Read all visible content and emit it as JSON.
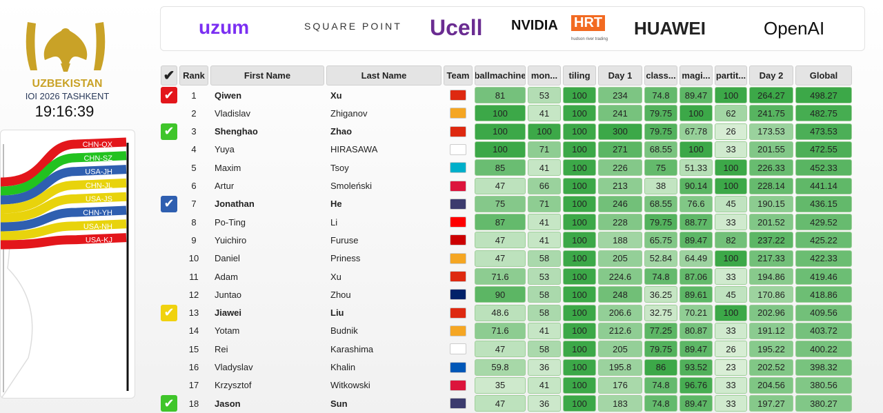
{
  "header": {
    "country": "UZBEKISTAN",
    "event": "IOI 2026 TASHKENT",
    "clock": "19:16:39"
  },
  "sponsors": [
    {
      "name": "uzum",
      "color": "#7b2ff2"
    },
    {
      "name": "SQUARE POINT",
      "color": "#333333"
    },
    {
      "name": "Ucell",
      "color": "#6a2c91"
    },
    {
      "name": "NVIDIA",
      "color": "#111111"
    },
    {
      "name": "HRT",
      "color": "#f26a21"
    },
    {
      "name": "hudson river trading",
      "color": "#555555"
    },
    {
      "name": "HUAWEI",
      "color": "#222222"
    },
    {
      "name": "OpenAI",
      "color": "#111111"
    }
  ],
  "leaders": [
    {
      "label": "CHN-QX",
      "color": "#e3161b"
    },
    {
      "label": "CHN-SZ",
      "color": "#22c21f"
    },
    {
      "label": "USA-JH",
      "color": "#2f5fb0"
    },
    {
      "label": "CHN-JL",
      "color": "#e8d30c"
    },
    {
      "label": "USA-JS",
      "color": "#e8d30c"
    },
    {
      "label": "CHN-YH",
      "color": "#2f5fb0"
    },
    {
      "label": "USA-NH",
      "color": "#e8d30c"
    },
    {
      "label": "USA-KJ",
      "color": "#e3161b"
    }
  ],
  "table": {
    "columns": [
      "✔",
      "Rank",
      "First Name",
      "Last Name",
      "Team",
      "ballmachine",
      "mon...",
      "tiling",
      "Day 1",
      "class...",
      "magi...",
      "partit...",
      "Day 2",
      "Global"
    ],
    "rows": [
      {
        "check": "#e3161b",
        "flag": "#de2910",
        "cells": [
          1,
          "Qiwen",
          "Xu",
          81,
          53,
          100,
          234,
          74.8,
          89.47,
          100,
          264.27,
          498.27
        ]
      },
      {
        "check": null,
        "flag": "#f5a623",
        "cells": [
          2,
          "Vladislav",
          "Zhiganov",
          100,
          41,
          100,
          241,
          79.75,
          100,
          62,
          241.75,
          482.75
        ]
      },
      {
        "check": "#3fc52a",
        "flag": "#de2910",
        "cells": [
          3,
          "Shenghao",
          "Zhao",
          100,
          100,
          100,
          300,
          79.75,
          67.78,
          26,
          173.53,
          473.53
        ]
      },
      {
        "check": null,
        "flag": "#ffffff",
        "cells": [
          4,
          "Yuya",
          "HIRASAWA",
          100,
          71,
          100,
          271,
          68.55,
          100,
          33,
          201.55,
          472.55
        ]
      },
      {
        "check": null,
        "flag": "#00afca",
        "cells": [
          5,
          "Maxim",
          "Tsoy",
          85,
          41,
          100,
          226,
          75,
          51.33,
          100,
          226.33,
          452.33
        ]
      },
      {
        "check": null,
        "flag": "#dc143c",
        "cells": [
          6,
          "Artur",
          "Smoleński",
          47,
          66,
          100,
          213,
          38,
          90.14,
          100,
          228.14,
          441.14
        ]
      },
      {
        "check": "#2f5fb0",
        "flag": "#3c3b6e",
        "cells": [
          7,
          "Jonathan",
          "He",
          75,
          71,
          100,
          246,
          68.55,
          76.6,
          45,
          190.15,
          436.15
        ]
      },
      {
        "check": null,
        "flag": "#fe0000",
        "cells": [
          8,
          "Po-Ting",
          "Li",
          87,
          41,
          100,
          228,
          79.75,
          88.77,
          33,
          201.52,
          429.52
        ]
      },
      {
        "check": null,
        "flag": "#cc0001",
        "cells": [
          9,
          "Yuichiro",
          "Furuse",
          47,
          41,
          100,
          188,
          65.75,
          89.47,
          82,
          237.22,
          425.22
        ]
      },
      {
        "check": null,
        "flag": "#f5a623",
        "cells": [
          10,
          "Daniel",
          "Priness",
          47,
          58,
          100,
          205,
          52.84,
          64.49,
          100,
          217.33,
          422.33
        ]
      },
      {
        "check": null,
        "flag": "#de2910",
        "cells": [
          11,
          "Adam",
          "Xu",
          71.6,
          53,
          100,
          224.6,
          74.8,
          87.06,
          33,
          194.86,
          419.46
        ]
      },
      {
        "check": null,
        "flag": "#012169",
        "cells": [
          12,
          "Juntao",
          "Zhou",
          90,
          58,
          100,
          248,
          36.25,
          89.61,
          45,
          170.86,
          418.86
        ]
      },
      {
        "check": "#f0d20f",
        "flag": "#de2910",
        "cells": [
          13,
          "Jiawei",
          "Liu",
          48.6,
          58,
          100,
          206.6,
          32.75,
          70.21,
          100,
          202.96,
          409.56
        ]
      },
      {
        "check": null,
        "flag": "#f5a623",
        "cells": [
          14,
          "Yotam",
          "Budnik",
          71.6,
          41,
          100,
          212.6,
          77.25,
          80.87,
          33,
          191.12,
          403.72
        ]
      },
      {
        "check": null,
        "flag": "#ffffff",
        "cells": [
          15,
          "Rei",
          "Karashima",
          47,
          58,
          100,
          205,
          79.75,
          89.47,
          26,
          195.22,
          400.22
        ]
      },
      {
        "check": null,
        "flag": "#0057b7",
        "cells": [
          16,
          "Vladyslav",
          "Khalin",
          59.8,
          36,
          100,
          195.8,
          86,
          93.52,
          23,
          202.52,
          398.32
        ]
      },
      {
        "check": null,
        "flag": "#dc143c",
        "cells": [
          17,
          "Krzysztof",
          "Witkowski",
          35,
          41,
          100,
          176,
          74.8,
          96.76,
          33,
          204.56,
          380.56
        ]
      },
      {
        "check": "#3fc52a",
        "flag": "#3c3b6e",
        "cells": [
          18,
          "Jason",
          "Sun",
          47,
          36,
          100,
          183,
          74.8,
          89.47,
          33,
          197.27,
          380.27
        ]
      }
    ]
  }
}
